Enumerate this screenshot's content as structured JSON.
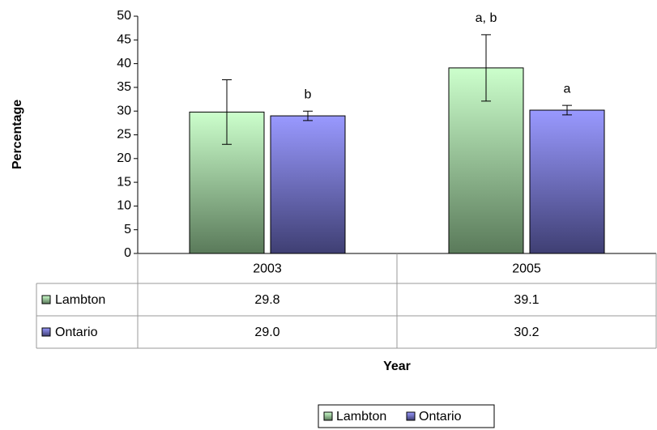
{
  "chart_data": {
    "type": "bar",
    "y_label": "Percentage",
    "x_label": "Year",
    "categories": [
      "2003",
      "2005"
    ],
    "series": [
      {
        "name": "Lambton",
        "color": "#ccffcc",
        "gradient": [
          "#ccffcc",
          "#5a7a5a"
        ],
        "values": [
          29.8,
          39.1
        ],
        "value_labels": [
          "29.8",
          "39.1"
        ],
        "errors": [
          6.8,
          7
        ],
        "annotations": [
          null,
          "a, b"
        ]
      },
      {
        "name": "Ontario",
        "color": "#9999ff",
        "gradient": [
          "#9999ff",
          "#3f3f73"
        ],
        "values": [
          29.0,
          30.2
        ],
        "value_labels": [
          "29.0",
          "30.2"
        ],
        "errors": [
          1,
          1
        ],
        "annotations": [
          "b",
          "a"
        ]
      }
    ],
    "ylim": [
      0,
      50
    ],
    "yticks": [
      0,
      5,
      10,
      15,
      20,
      25,
      30,
      35,
      40,
      45,
      50
    ],
    "grid": false,
    "legend": "bottom"
  }
}
